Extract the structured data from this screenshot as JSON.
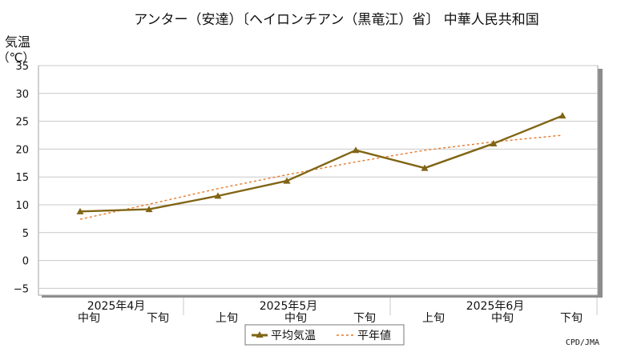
{
  "chart_data": {
    "type": "line",
    "title": "アンター（安達）〔ヘイロンチアン（黒竜江）省〕 中華人民共和国",
    "ylabel_line1": "気温",
    "ylabel_line2": "（℃）",
    "ylim": [
      -7,
      35
    ],
    "yticks": [
      35,
      30,
      25,
      20,
      15,
      10,
      5,
      0,
      -5
    ],
    "ytick_labels": [
      "35",
      "30",
      "25",
      "20",
      "15",
      "10",
      "5",
      "0",
      "−5"
    ],
    "categories": [
      "中旬",
      "下旬",
      "上旬",
      "中旬",
      "下旬",
      "上旬",
      "中旬",
      "下旬"
    ],
    "months": [
      {
        "label": "2025年4月",
        "center_index": 0.5
      },
      {
        "label": "2025年5月",
        "center_index": 3
      },
      {
        "label": "2025年6月",
        "center_index": 6
      }
    ],
    "month_separators_after_index": [
      1.5,
      4.5,
      7.5
    ],
    "grid": true,
    "legend_position": "bottom-center",
    "series": [
      {
        "name": "平均気温",
        "color": "#806515",
        "style": "solid",
        "marker": "triangle",
        "values": [
          8.8,
          9.2,
          11.6,
          14.3,
          19.8,
          16.6,
          21.0,
          26.0
        ]
      },
      {
        "name": "平年値",
        "color": "#E8792A",
        "style": "dashed",
        "marker": "none",
        "values": [
          7.4,
          10.1,
          12.9,
          15.4,
          17.7,
          19.8,
          21.3,
          22.5
        ]
      }
    ]
  },
  "source": "CPD/JMA"
}
